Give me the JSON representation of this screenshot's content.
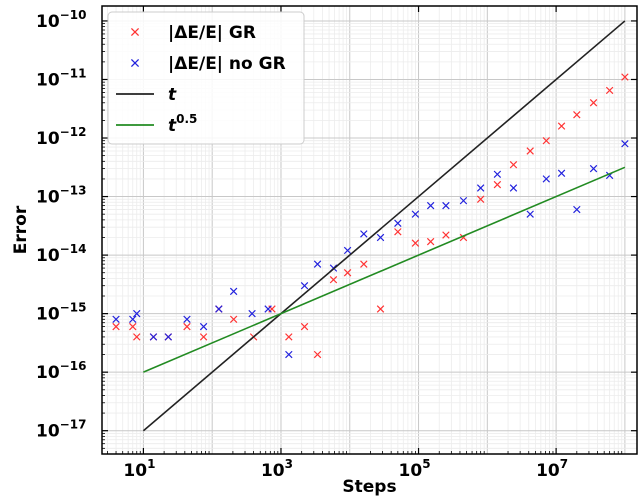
{
  "chart_data": {
    "type": "scatter",
    "xlabel": "Steps",
    "ylabel": "Error",
    "xscale": "log",
    "yscale": "log",
    "xlim": [
      2.5,
      150000000
    ],
    "ylim": [
      4e-18,
      1.8e-10
    ],
    "grid": true,
    "legend_position": "top-left",
    "x_ticks": [
      {
        "value": 10,
        "base": "10",
        "exp": "1"
      },
      {
        "value": 1000,
        "base": "10",
        "exp": "3"
      },
      {
        "value": 100000,
        "base": "10",
        "exp": "5"
      },
      {
        "value": 10000000,
        "base": "10",
        "exp": "7"
      }
    ],
    "y_ticks": [
      {
        "value": 1e-17,
        "base": "10",
        "exp": "−17"
      },
      {
        "value": 1e-16,
        "base": "10",
        "exp": "−16"
      },
      {
        "value": 1e-15,
        "base": "10",
        "exp": "−15"
      },
      {
        "value": 1e-14,
        "base": "10",
        "exp": "−14"
      },
      {
        "value": 1e-13,
        "base": "10",
        "exp": "−13"
      },
      {
        "value": 1e-12,
        "base": "10",
        "exp": "−12"
      },
      {
        "value": 1e-11,
        "base": "10",
        "exp": "−11"
      },
      {
        "value": 1e-10,
        "base": "10",
        "exp": "−10"
      }
    ],
    "series": [
      {
        "name": "|ΔE/E| GR",
        "kind": "scatter",
        "color": "#ff3333",
        "x": [
          4,
          7,
          8,
          14,
          23,
          43,
          75,
          125,
          205,
          400,
          740,
          1300,
          2200,
          3400,
          5800,
          9300,
          16000,
          28000,
          50000,
          90000,
          150000,
          250000,
          450000,
          800000,
          1400000,
          2400000,
          4200000,
          7200000,
          12000000,
          20000000,
          35000000,
          60000000,
          100000000
        ],
        "y": [
          6e-16,
          6e-16,
          4e-16,
          4e-16,
          4e-16,
          6e-16,
          4e-16,
          1.2e-15,
          8e-16,
          4e-16,
          1.2e-15,
          4e-16,
          6e-16,
          2e-16,
          3.8e-15,
          5e-15,
          7e-15,
          1.2e-15,
          2.5e-14,
          1.6e-14,
          1.7e-14,
          2.2e-14,
          2e-14,
          9e-14,
          1.6e-13,
          3.5e-13,
          6e-13,
          9e-13,
          1.6e-12,
          2.5e-12,
          4e-12,
          6.5e-12,
          1.1e-11
        ]
      },
      {
        "name": "|ΔE/E| no GR",
        "kind": "scatter",
        "color": "#2222dd",
        "x": [
          4,
          7,
          8,
          14,
          23,
          43,
          75,
          125,
          205,
          380,
          650,
          1300,
          2200,
          3400,
          5800,
          9300,
          16000,
          28000,
          50000,
          90000,
          150000,
          250000,
          450000,
          800000,
          1400000,
          2400000,
          4200000,
          7200000,
          12000000,
          20000000,
          35000000,
          60000000,
          100000000
        ],
        "y": [
          8e-16,
          8e-16,
          1e-15,
          4e-16,
          4e-16,
          8e-16,
          6e-16,
          1.2e-15,
          2.4e-15,
          1e-15,
          1.2e-15,
          2e-16,
          3e-15,
          7e-15,
          6e-15,
          1.2e-14,
          2.3e-14,
          2e-14,
          3.5e-14,
          5e-14,
          7e-14,
          7e-14,
          8.5e-14,
          1.4e-13,
          2.4e-13,
          1.4e-13,
          5e-14,
          2e-13,
          2.5e-13,
          6e-14,
          3e-13,
          2.3e-13,
          8e-13
        ]
      },
      {
        "name": "t",
        "kind": "line",
        "color": "#222222",
        "x": [
          10,
          100000000
        ],
        "y": [
          1e-17,
          1e-10
        ]
      },
      {
        "name": "t^0.5",
        "kind": "line",
        "color": "#228b22",
        "x": [
          10,
          100000000
        ],
        "y": [
          1e-16,
          3.16e-13
        ]
      }
    ],
    "legend": [
      {
        "label": "|ΔE/E| GR",
        "marker": "x",
        "color": "#ff3333"
      },
      {
        "label": "|ΔE/E| no GR",
        "marker": "x",
        "color": "#2222dd"
      },
      {
        "label": "t",
        "marker": "line",
        "color": "#222222"
      },
      {
        "label": "t",
        "sup": "0.5",
        "marker": "line",
        "color": "#228b22"
      }
    ]
  }
}
